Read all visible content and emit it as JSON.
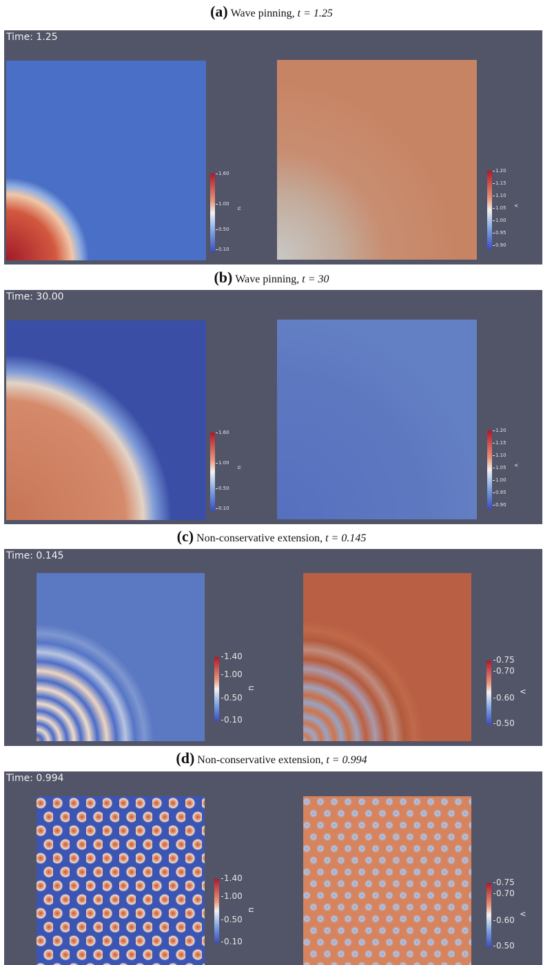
{
  "panels": [
    {
      "label": "(a)",
      "caption_text": "Wave pinning, ",
      "caption_math": "t = 1.25",
      "time": "Time: 1.25",
      "left_bar": {
        "var": "u",
        "ticks": [
          "1.60",
          "1.00",
          "0.50",
          "0.10"
        ]
      },
      "right_bar": {
        "var": "v",
        "ticks": [
          "1.20",
          "1.15",
          "1.10",
          "1.05",
          "1.00",
          "0.95",
          "0.90"
        ]
      }
    },
    {
      "label": "(b)",
      "caption_text": "Wave pinning, ",
      "caption_math": "t = 30",
      "time": "Time: 30.00",
      "left_bar": {
        "var": "u",
        "ticks": [
          "1.60",
          "1.00",
          "0.50",
          "0.10"
        ]
      },
      "right_bar": {
        "var": "v",
        "ticks": [
          "1.20",
          "1.15",
          "1.10",
          "1.05",
          "1.00",
          "0.95",
          "0.90"
        ]
      }
    },
    {
      "label": "(c)",
      "caption_text": "Non-conservative extension, ",
      "caption_math": "t = 0.145",
      "time": "Time: 0.145",
      "left_bar": {
        "var": "u",
        "ticks": [
          "1.40",
          "1.00",
          "0.50",
          "0.10"
        ]
      },
      "right_bar": {
        "var": "v",
        "ticks": [
          "0.75",
          "0.70",
          "0.60",
          "0.50"
        ]
      }
    },
    {
      "label": "(d)",
      "caption_text": "Non-conservative extension, ",
      "caption_math": "t = 0.994",
      "time": "Time: 0.994",
      "left_bar": {
        "var": "u",
        "ticks": [
          "1.40",
          "1.00",
          "0.50",
          "0.10"
        ]
      },
      "right_bar": {
        "var": "v",
        "ticks": [
          "0.75",
          "0.70",
          "0.60",
          "0.50"
        ]
      }
    }
  ]
}
